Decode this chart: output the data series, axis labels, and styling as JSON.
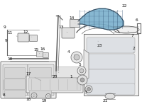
{
  "bg_color": "#ffffff",
  "lc": "#666666",
  "lc2": "#444444",
  "fig_width": 2.0,
  "fig_height": 1.47,
  "dpi": 100,
  "fs": 4.2,
  "manifold_color": "#7ab0cc",
  "part_fill": "#f2f2f2",
  "part_edge": "#777777",
  "gray_dark": "#aaaaaa",
  "gray_mid": "#cccccc",
  "gray_light": "#e8e8e8"
}
